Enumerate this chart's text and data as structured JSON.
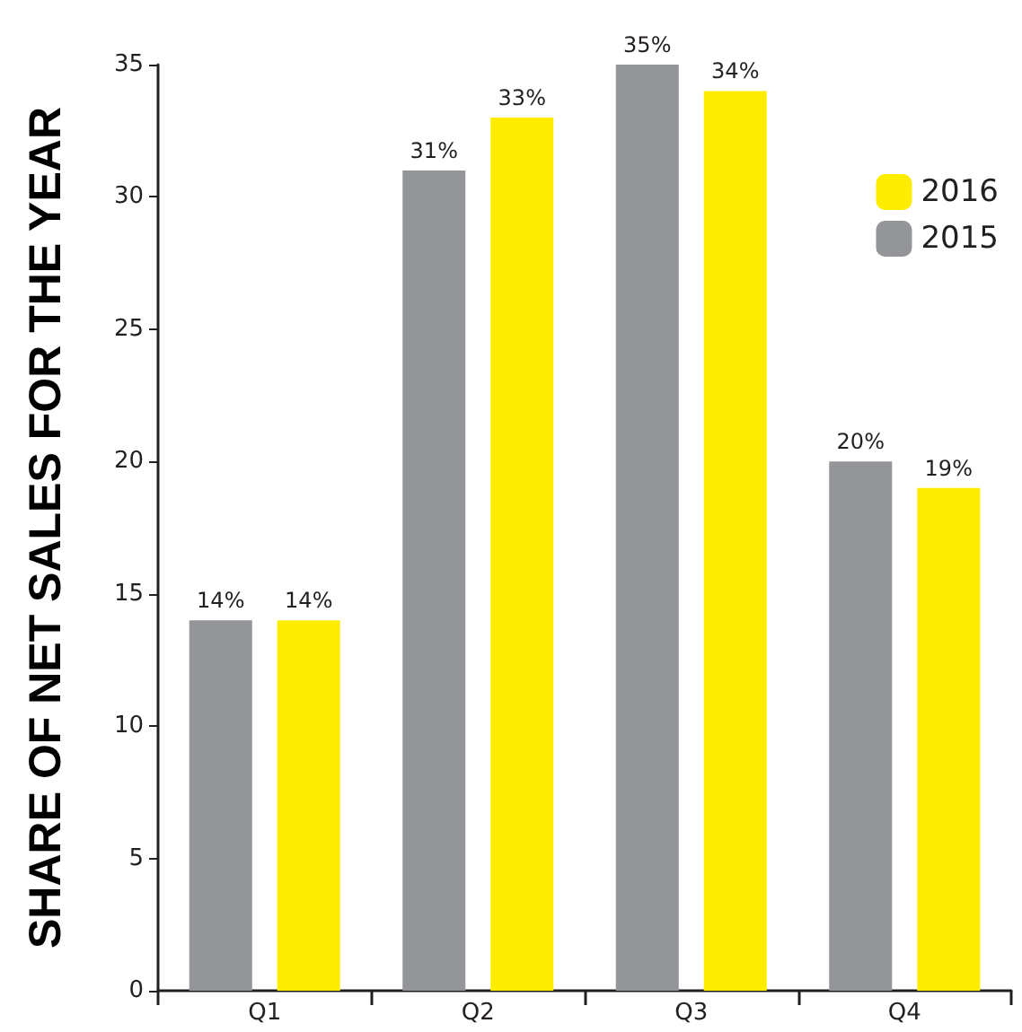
{
  "chart_data": {
    "type": "bar",
    "ylabel": "SHARE OF NET SALES FOR THE YEAR",
    "categories": [
      "Q1",
      "Q2",
      "Q3",
      "Q4"
    ],
    "series": [
      {
        "name": "2015",
        "color": "#939598",
        "values": [
          14,
          31,
          35,
          20
        ],
        "value_labels": [
          "14%",
          "31%",
          "35%",
          "20%"
        ]
      },
      {
        "name": "2016",
        "color": "#ffed00",
        "values": [
          14,
          33,
          34,
          19
        ],
        "value_labels": [
          "14%",
          "33%",
          "34%",
          "19%"
        ]
      }
    ],
    "ylim": [
      0,
      35
    ],
    "yticks": [
      0,
      5,
      10,
      15,
      20,
      25,
      30,
      35
    ],
    "grid": false,
    "legend": "top right"
  }
}
